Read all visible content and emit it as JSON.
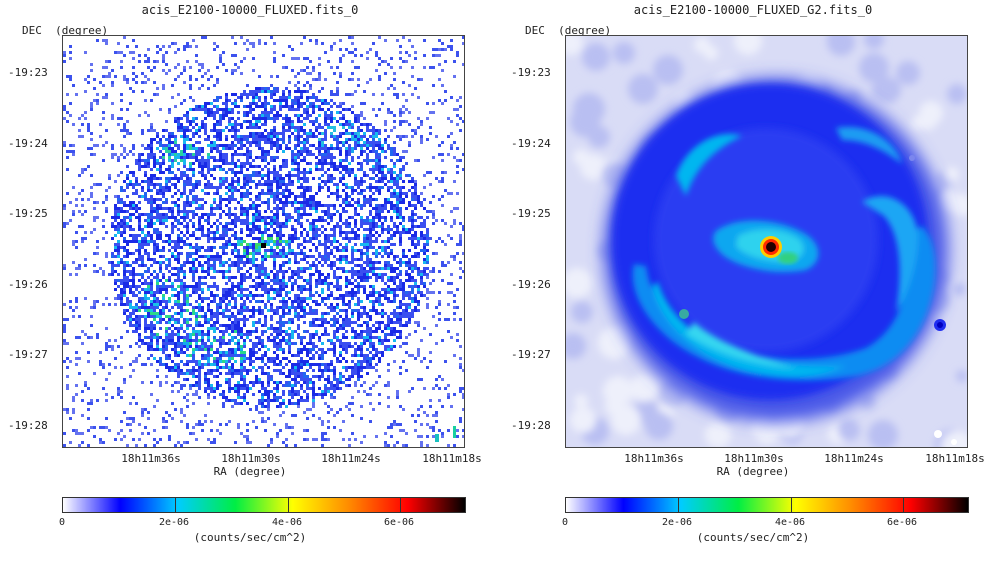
{
  "panels": [
    {
      "title": "acis_E2100-10000_FLUXED.fits_0",
      "dec_label": "DEC  (degree)",
      "ra_label": "RA  (degree)",
      "y_ticks": [
        "-19:23",
        "-19:24",
        "-19:25",
        "-19:26",
        "-19:27",
        "-19:28"
      ],
      "x_ticks": [
        "18h11m36s",
        "18h11m30s",
        "18h11m24s",
        "18h11m18s"
      ],
      "colorbar_ticks": [
        "0",
        "2e-06",
        "4e-06",
        "6e-06"
      ],
      "colorbar_unit": "(counts/sec/cm^2)"
    },
    {
      "title": "acis_E2100-10000_FLUXED_G2.fits_0",
      "dec_label": "DEC  (degree)",
      "ra_label": "RA  (degree)",
      "y_ticks": [
        "-19:23",
        "-19:24",
        "-19:25",
        "-19:26",
        "-19:27",
        "-19:28"
      ],
      "x_ticks": [
        "18h11m36s",
        "18h11m30s",
        "18h11m24s",
        "18h11m18s"
      ],
      "colorbar_ticks": [
        "0",
        "2e-06",
        "4e-06",
        "6e-06"
      ],
      "colorbar_unit": "(counts/sec/cm^2)"
    }
  ],
  "colors": {
    "scale": [
      "#ffffff",
      "#0000ff",
      "#00ccff",
      "#00ee44",
      "#ffff00",
      "#ff8800",
      "#ff0000",
      "#000000"
    ],
    "frame": "#444444"
  }
}
